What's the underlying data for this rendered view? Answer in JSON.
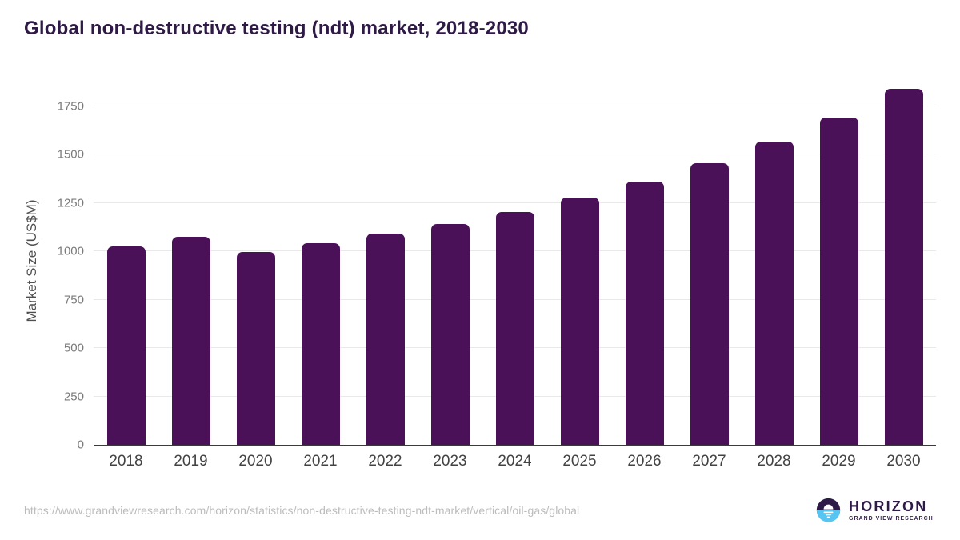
{
  "header": {
    "title": "Global non-destructive testing (ndt) market, 2018-2030"
  },
  "chart_data": {
    "type": "bar",
    "title": "Global non-destructive testing (ndt) market, 2018-2030",
    "categories": [
      "2018",
      "2019",
      "2020",
      "2021",
      "2022",
      "2023",
      "2024",
      "2025",
      "2026",
      "2027",
      "2028",
      "2029",
      "2030"
    ],
    "values": [
      1026,
      1073,
      995,
      1042,
      1091,
      1143,
      1205,
      1278,
      1361,
      1454,
      1566,
      1692,
      1838
    ],
    "xlabel": "",
    "ylabel": "Market Size (US$M)",
    "ylim": [
      0,
      1885
    ],
    "yticks": [
      0,
      250,
      500,
      750,
      1000,
      1250,
      1500,
      1750
    ],
    "grid": "horizontal",
    "legend": "none",
    "bar_color": "#4a1159"
  },
  "footer": {
    "source_url": "https://www.grandviewresearch.com/horizon/statistics/non-destructive-testing-ndt-market/vertical/oil-gas/global"
  },
  "logo": {
    "primary": "HORIZON",
    "secondary": "GRAND VIEW RESEARCH",
    "circle_top_color": "#2e1a47",
    "circle_bottom_color": "#56c5f2"
  },
  "colors": {
    "title_text": "#2f1a47",
    "bar": "#4a1159",
    "axis_line": "#3a3a3a",
    "gridline": "#e9e9e9",
    "y_tick_label": "#7a7a7a",
    "x_tick_label": "#434343",
    "url_text": "#bcbcbc"
  }
}
